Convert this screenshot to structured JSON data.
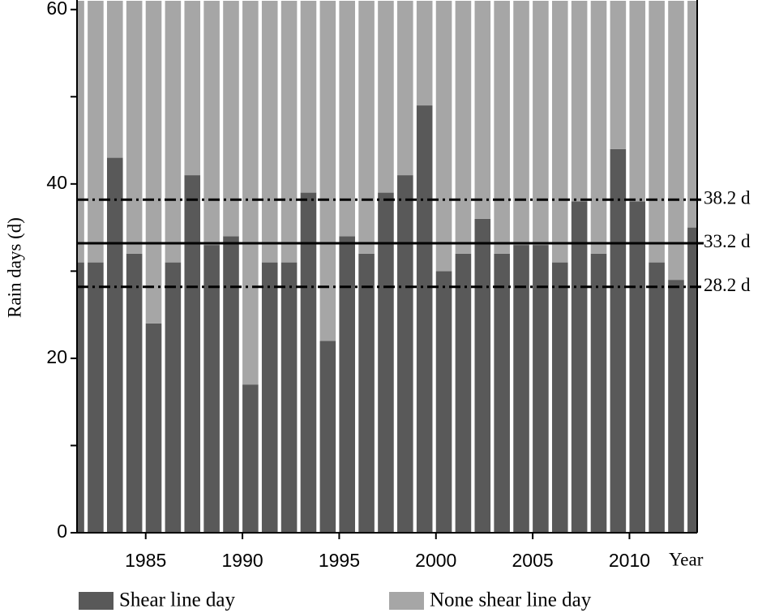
{
  "chart_data": {
    "type": "stacked_bar",
    "y_label": "Rain days (d)",
    "x_label": "Year",
    "x": [
      1981,
      1982,
      1983,
      1984,
      1985,
      1986,
      1987,
      1988,
      1989,
      1990,
      1991,
      1992,
      1993,
      1994,
      1995,
      1996,
      1997,
      1998,
      1999,
      2000,
      2001,
      2002,
      2003,
      2004,
      2005,
      2006,
      2007,
      2008,
      2009,
      2010,
      2011,
      2012,
      2013
    ],
    "series": [
      {
        "name": "Shear line day",
        "color": "#595959",
        "values": [
          31,
          31,
          43,
          32,
          24,
          31,
          41,
          33,
          34,
          17,
          31,
          31,
          39,
          22,
          34,
          32,
          39,
          41,
          49,
          30,
          32,
          36,
          32,
          33,
          33,
          31,
          38,
          32,
          44,
          38,
          31,
          29,
          35
        ]
      },
      {
        "name": "None shear line day",
        "color": "#a6a6a6",
        "values": [
          30,
          30,
          18,
          29,
          37,
          30,
          20,
          28,
          27,
          44,
          30,
          30,
          22,
          39,
          27,
          29,
          22,
          20,
          12,
          31,
          29,
          25,
          29,
          28,
          28,
          30,
          23,
          29,
          17,
          23,
          30,
          32,
          26
        ]
      }
    ],
    "xlim": [
      1981.45,
      2013.5
    ],
    "xticks": [
      1985,
      1990,
      1995,
      2000,
      2005,
      2010
    ],
    "ylim": [
      0,
      61
    ],
    "yticks": [
      0,
      20,
      40,
      60
    ],
    "yminor_ticks": [
      10,
      30,
      50
    ],
    "reference_lines": [
      {
        "value": 38.2,
        "label": "38.2 d",
        "style": "dashdot"
      },
      {
        "value": 33.2,
        "label": "33.2 d",
        "style": "solid"
      },
      {
        "value": 28.2,
        "label": "28.2 d",
        "style": "dashdot"
      }
    ]
  }
}
